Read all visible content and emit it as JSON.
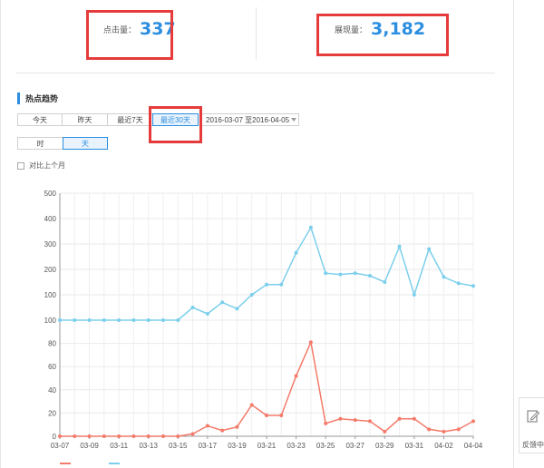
{
  "stats": {
    "clicks": {
      "label": "点击量：",
      "value": "337"
    },
    "impressions": {
      "label": "展现量：",
      "value": "3,182"
    }
  },
  "section": {
    "title": "热点趋势"
  },
  "range_tabs": [
    {
      "label": "今天",
      "active": false
    },
    {
      "label": "昨天",
      "active": false
    },
    {
      "label": "最近7天",
      "active": false
    },
    {
      "label": "最近30天",
      "active": true
    }
  ],
  "date_range": "2016-03-07 至2016-04-05",
  "granularity": [
    {
      "label": "时",
      "active": false
    },
    {
      "label": "天",
      "active": true
    }
  ],
  "compare": {
    "label": "对比上个月",
    "checked": false
  },
  "feedback": {
    "label": "反馈中"
  },
  "colors": {
    "accent": "#2b8ee0",
    "highlight_box": "#e53b3b",
    "clicks_line": "#f47a6a",
    "impressions_line": "#7ccfeb"
  },
  "chart_data": {
    "type": "line",
    "x": [
      "03-07",
      "03-08",
      "03-09",
      "03-10",
      "03-11",
      "03-12",
      "03-13",
      "03-14",
      "03-15",
      "03-16",
      "03-17",
      "03-18",
      "03-19",
      "03-20",
      "03-21",
      "03-22",
      "03-23",
      "03-24",
      "03-25",
      "03-26",
      "03-27",
      "03-28",
      "03-29",
      "03-30",
      "03-31",
      "04-01",
      "04-02",
      "04-03",
      "04-04"
    ],
    "x_tick_labels": [
      "03-07",
      "03-09",
      "03-11",
      "03-13",
      "03-15",
      "03-17",
      "03-19",
      "03-21",
      "03-23",
      "03-25",
      "03-27",
      "03-29",
      "03-31",
      "04-02",
      "04-04"
    ],
    "upper_axis": {
      "ticks": [
        "100",
        "200",
        "300",
        "400",
        "500"
      ],
      "range": [
        0,
        500
      ]
    },
    "lower_axis": {
      "ticks": [
        "0",
        "20",
        "40",
        "60",
        "80",
        "100"
      ],
      "range": [
        0,
        100
      ]
    },
    "series": [
      {
        "key": "impressions",
        "axis": "upper",
        "values": [
          0,
          0,
          0,
          0,
          0,
          0,
          0,
          0,
          0,
          50,
          25,
          70,
          45,
          100,
          140,
          140,
          265,
          365,
          185,
          180,
          185,
          175,
          150,
          290,
          100,
          280,
          170,
          145,
          135
        ]
      },
      {
        "key": "clicks",
        "axis": "lower",
        "values": [
          0,
          0,
          0,
          0,
          0,
          0,
          0,
          0,
          0,
          2,
          9,
          5,
          8,
          27,
          18,
          18,
          52,
          81,
          11,
          15,
          14,
          13,
          4,
          15,
          15,
          6,
          4,
          6,
          13
        ]
      }
    ],
    "legend_position": "bottom",
    "grid": true
  }
}
